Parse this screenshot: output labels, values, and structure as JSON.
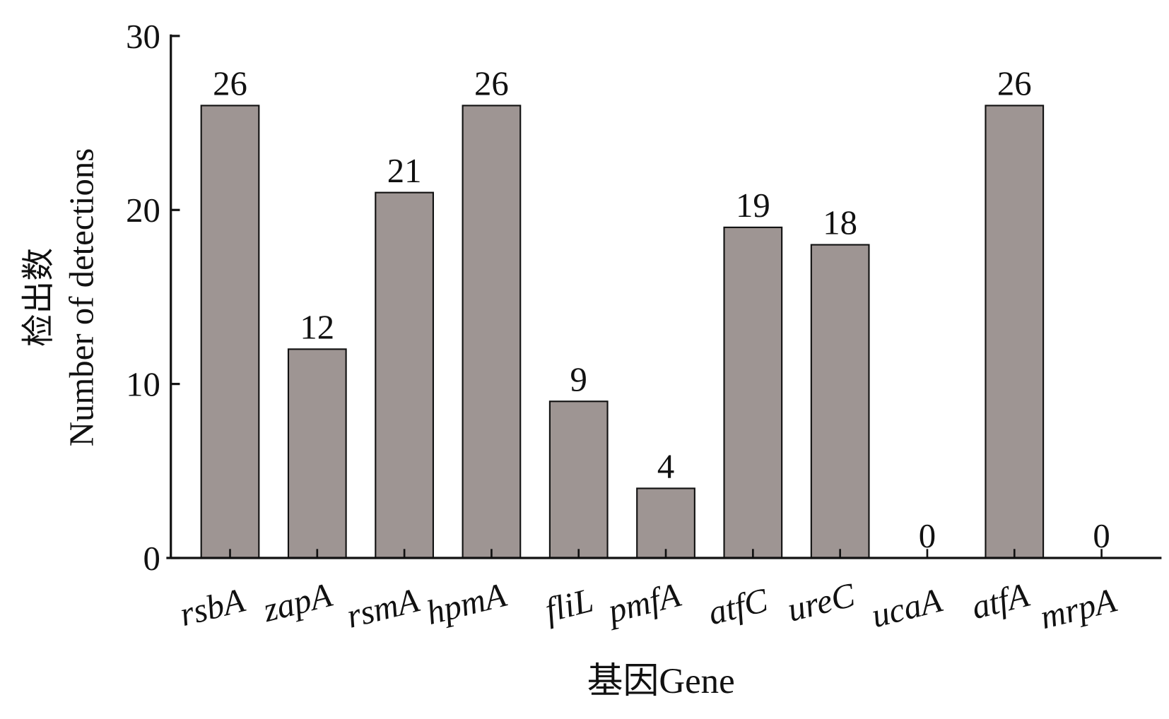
{
  "chart_data": {
    "type": "bar",
    "title": "",
    "xlabel": "基因Gene",
    "ylabel_cn": "检出数",
    "ylabel": "Number of detections",
    "categories": [
      "rsbA",
      "zapA",
      "rsmA",
      "hpmA",
      "fliL",
      "pmfA",
      "atfC",
      "ureC",
      "ucaA",
      "atfA",
      "mrpA"
    ],
    "values": [
      26,
      12,
      21,
      26,
      9,
      4,
      19,
      18,
      0,
      26,
      0
    ],
    "ylim": [
      0,
      30
    ],
    "yticks": [
      0,
      10,
      20,
      30
    ],
    "grid": false,
    "bar_color": "#9e9593",
    "edge_color": "#111111"
  }
}
